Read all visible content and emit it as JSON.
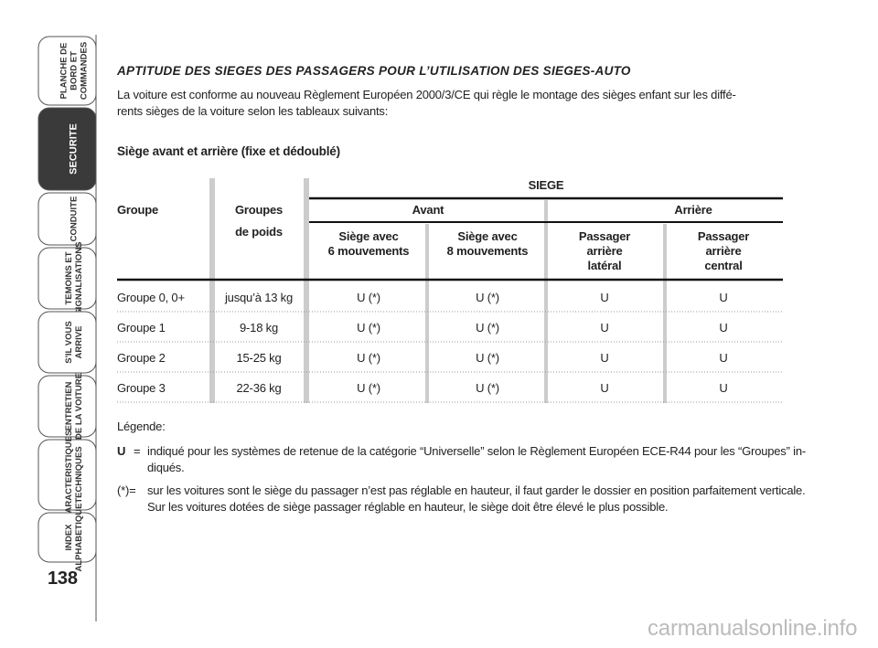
{
  "sidebar": {
    "active_tab": 1,
    "tabs": [
      {
        "lines": [
          "PLANCHE DE",
          "BORD ET",
          "COMMANDES"
        ]
      },
      {
        "lines": [
          "SECURITE"
        ]
      },
      {
        "lines": [
          "CONDUITE"
        ]
      },
      {
        "lines": [
          "TEMOINS ET",
          "SIGNALISATIONS"
        ]
      },
      {
        "lines": [
          "S'IL VOUS",
          "ARRIVE"
        ]
      },
      {
        "lines": [
          "ENTRETIEN",
          "DE LA VOITURE"
        ]
      },
      {
        "lines": [
          "CARACTERISTIQUES",
          "TECHNIQUES"
        ]
      },
      {
        "lines": [
          "INDEX",
          "ALPHABETIQUE"
        ]
      }
    ],
    "page_number": "138"
  },
  "title": "APTITUDE DES SIEGES DES PASSAGERS POUR L’UTILISATION DES SIEGES-AUTO",
  "intro": [
    "La voiture est conforme au nouveau Règlement Européen 2000/3/CE qui règle le montage des sièges enfant sur les diffé-",
    "rents sièges de la voiture selon les tableaux suivants:"
  ],
  "subtitle": "Siège avant et arrière (fixe et dédoublé)",
  "table": {
    "siege": "SIEGE",
    "col_groupe": "Groupe",
    "col_poids": [
      "Groupes",
      "de poids"
    ],
    "avant": "Avant",
    "arriere": "Arrière",
    "seat_headers": [
      [
        "Siège avec",
        "6 mouvements"
      ],
      [
        "Siège avec",
        "8 mouvements"
      ],
      [
        "Passager",
        "arrière",
        "latéral"
      ],
      [
        "Passager",
        "arrière",
        "central"
      ]
    ],
    "rows": [
      [
        "Groupe 0, 0+",
        "jusqu’à 13 kg",
        "U (*)",
        "U (*)",
        "U",
        "U"
      ],
      [
        "Groupe 1",
        "9-18 kg",
        "U (*)",
        "U (*)",
        "U",
        "U"
      ],
      [
        "Groupe 2",
        "15-25 kg",
        "U (*)",
        "U (*)",
        "U",
        "U"
      ],
      [
        "Groupe 3",
        "22-36 kg",
        "U (*)",
        "U (*)",
        "U",
        "U"
      ]
    ]
  },
  "legend": {
    "title": "Légende:",
    "items": [
      {
        "key": "U",
        "sep": "=",
        "lines": [
          "indiqué pour les systèmes de retenue de la catégorie “Universelle” selon le Règlement Européen ECE-R44 pour les “Groupes” in-",
          "diqués."
        ]
      },
      {
        "key": "(*)=",
        "lines": [
          "sur les voitures sont le siège du passager n’est pas réglable en hauteur, il faut garder le dossier en position parfaitement verticale.",
          "Sur les voitures dotées de siège passager réglable en hauteur, le siège doit être élevé le plus possible."
        ]
      }
    ]
  },
  "watermark": "carmanualsonline.info"
}
